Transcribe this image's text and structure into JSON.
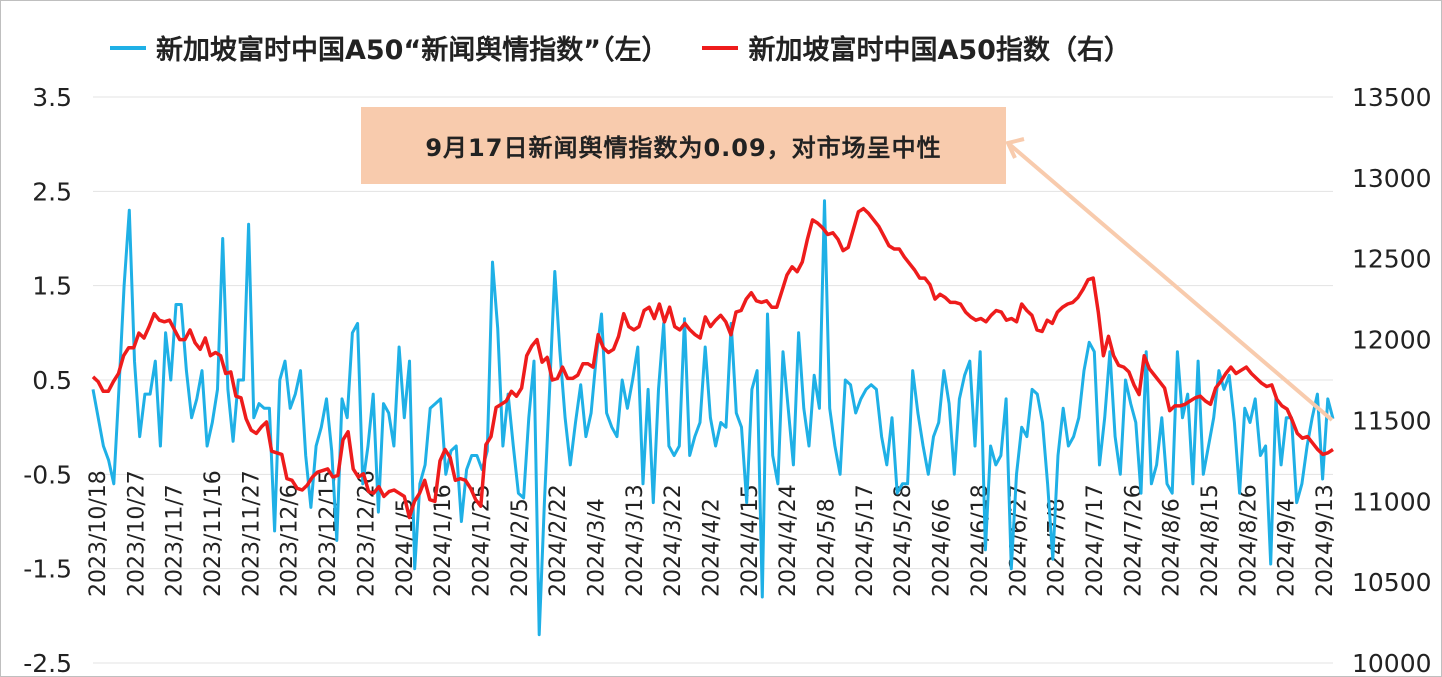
{
  "chart_data": {
    "type": "line",
    "title": "",
    "legend_position": "top",
    "grid": "horizontal",
    "y_left": {
      "ylim": [
        -2.5,
        3.5
      ],
      "ticks": [
        3.5,
        2.5,
        1.5,
        0.5,
        -0.5,
        -1.5,
        -2.5
      ],
      "tick_labels": [
        "3.5",
        "2.5",
        "1.5",
        "0.5",
        "-0.5",
        "-1.5",
        "-2.5"
      ]
    },
    "y_right": {
      "ylim": [
        10000,
        13500
      ],
      "ticks": [
        13500,
        13000,
        12500,
        12000,
        11500,
        11000,
        10500,
        10000
      ],
      "tick_labels": [
        "13500",
        "13000",
        "12500",
        "12000",
        "11500",
        "11000",
        "10500",
        "10000"
      ]
    },
    "x_tick_labels": [
      "2023/10/18",
      "2023/10/27",
      "2023/11/7",
      "2023/11/16",
      "2023/11/27",
      "2023/12/6",
      "2023/12/15",
      "2023/12/26",
      "2024/1/5",
      "2024/1/16",
      "2024/1/25",
      "2024/2/5",
      "2024/2/22",
      "2024/3/4",
      "2024/3/13",
      "2024/3/22",
      "2024/4/2",
      "2024/4/15",
      "2024/4/24",
      "2024/5/8",
      "2024/5/17",
      "2024/5/28",
      "2024/6/6",
      "2024/6/18",
      "2024/6/27",
      "2024/7/8",
      "2024/7/17",
      "2024/7/26",
      "2024/8/6",
      "2024/8/15",
      "2024/8/26",
      "2024/9/4",
      "2024/9/13"
    ],
    "series": [
      {
        "name": "新加坡富时中国A50“新闻舆情指数”（左）",
        "axis": "left",
        "color": "#1fb0e6",
        "values": [
          0.4,
          0.1,
          -0.2,
          -0.35,
          -0.6,
          0.4,
          1.5,
          2.3,
          0.7,
          -0.1,
          0.35,
          0.35,
          0.7,
          -0.2,
          1,
          0.5,
          1.3,
          1.3,
          0.6,
          0.1,
          0.3,
          0.6,
          -0.2,
          0.05,
          0.4,
          2,
          0.4,
          -0.15,
          0.5,
          0.5,
          2.15,
          0.1,
          0.25,
          0.2,
          0.2,
          -1.1,
          0.5,
          0.7,
          0.2,
          0.35,
          0.6,
          -0.3,
          -0.85,
          -0.2,
          0,
          0.3,
          -0.25,
          -1.2,
          0.3,
          0.1,
          1,
          1.1,
          -0.6,
          -0.2,
          0.35,
          -0.9,
          0.25,
          0.15,
          -0.2,
          0.85,
          0.1,
          0.7,
          -1.5,
          -0.6,
          -0.4,
          0.2,
          0.25,
          0.3,
          -0.5,
          -0.25,
          -0.2,
          -1.0,
          -0.45,
          -0.3,
          -0.3,
          -0.45,
          -0.25,
          1.75,
          1.05,
          -0.2,
          0.35,
          -0.2,
          -0.7,
          -0.75,
          0.1,
          0.7,
          -2.2,
          -0.8,
          0.4,
          1.65,
          0.8,
          0.1,
          -0.4,
          0.05,
          0.45,
          -0.1,
          0.15,
          0.75,
          1.2,
          0.15,
          0,
          -0.1,
          0.5,
          0.2,
          0.5,
          0.85,
          -0.6,
          0.4,
          -0.8,
          0.4,
          1.1,
          -0.2,
          -0.3,
          -0.2,
          1.15,
          -0.3,
          -0.1,
          0.05,
          0.85,
          0.1,
          -0.2,
          0.05,
          0,
          1.1,
          0.15,
          0,
          -0.8,
          0.4,
          0.6,
          -1.8,
          1.2,
          -0.3,
          -0.6,
          0.8,
          0.2,
          -0.4,
          1.0,
          0.2,
          -0.2,
          0.55,
          0.2,
          2.4,
          0.2,
          -0.2,
          -0.5,
          0.5,
          0.45,
          0.15,
          0.3,
          0.4,
          0.45,
          0.4,
          -0.1,
          -0.4,
          0.1,
          -0.7,
          -0.6,
          -0.6,
          0.6,
          0.15,
          -0.2,
          -0.5,
          -0.1,
          0.05,
          0.6,
          0.25,
          -0.5,
          0.3,
          0.55,
          0.7,
          -0.2,
          0.8,
          -1.3,
          -0.2,
          -0.4,
          -0.3,
          0.3,
          -1.5,
          -0.5,
          0,
          -0.1,
          0.4,
          0.35,
          0.05,
          -0.6,
          -1.4,
          -0.3,
          0.2,
          -0.2,
          -0.1,
          0.1,
          0.6,
          0.9,
          0.8,
          -0.4,
          0.1,
          0.8,
          -0.1,
          -0.5,
          0.5,
          0.25,
          0.05,
          -0.7,
          0.8,
          -0.6,
          -0.4,
          0.1,
          -0.6,
          -0.7,
          0.8,
          0.1,
          0.35,
          -0.6,
          0.7,
          -0.5,
          -0.2,
          0.1,
          0.6,
          0.4,
          0.55,
          0.05,
          -0.7,
          0.2,
          0.05,
          0.3,
          -0.3,
          -0.2,
          -1.45,
          0.3,
          -0.4,
          0.1,
          0.1,
          -0.8,
          -0.6,
          -0.2,
          0.1,
          0.35,
          -0.55,
          0.3,
          0.09
        ]
      },
      {
        "name": "新加坡富时中国A50指数（右）",
        "axis": "right",
        "color": "#ee1c1c",
        "values": [
          11770,
          11740,
          11680,
          11680,
          11740,
          11790,
          11900,
          11950,
          11950,
          12040,
          12010,
          12080,
          12160,
          12120,
          12110,
          12120,
          12060,
          12000,
          12000,
          12060,
          11980,
          11940,
          12010,
          11900,
          11920,
          11900,
          11790,
          11800,
          11650,
          11640,
          11510,
          11440,
          11420,
          11460,
          11490,
          11310,
          11300,
          11290,
          11140,
          11130,
          11080,
          11070,
          11100,
          11150,
          11180,
          11190,
          11200,
          11150,
          11160,
          11380,
          11430,
          11200,
          11150,
          11170,
          11060,
          11050,
          11090,
          11030,
          11060,
          11070,
          11050,
          11030,
          10900,
          11000,
          11050,
          11130,
          11010,
          11000,
          11250,
          11320,
          11270,
          11130,
          11140,
          11130,
          11080,
          11010,
          10970,
          11350,
          11400,
          11580,
          11600,
          11620,
          11680,
          11650,
          11700,
          11900,
          11960,
          12000,
          11860,
          11890,
          11750,
          11760,
          11830,
          11760,
          11760,
          11780,
          11850,
          11850,
          11830,
          12030,
          11950,
          11920,
          11940,
          12020,
          12160,
          12080,
          12060,
          12080,
          12180,
          12200,
          12130,
          12220,
          12110,
          12200,
          12080,
          12060,
          12100,
          12060,
          12030,
          12010,
          12140,
          12080,
          12120,
          12150,
          12110,
          12030,
          12170,
          12180,
          12250,
          12290,
          12240,
          12230,
          12240,
          12200,
          12200,
          12300,
          12400,
          12450,
          12420,
          12480,
          12620,
          12740,
          12720,
          12690,
          12650,
          12660,
          12620,
          12550,
          12570,
          12680,
          12790,
          12810,
          12780,
          12740,
          12700,
          12640,
          12580,
          12560,
          12560,
          12510,
          12470,
          12430,
          12380,
          12380,
          12340,
          12250,
          12280,
          12260,
          12230,
          12230,
          12220,
          12170,
          12140,
          12120,
          12130,
          12110,
          12150,
          12180,
          12170,
          12120,
          12130,
          12110,
          12220,
          12180,
          12150,
          12060,
          12050,
          12120,
          12100,
          12170,
          12200,
          12220,
          12230,
          12260,
          12310,
          12370,
          12380,
          12170,
          11900,
          12020,
          11900,
          11840,
          11830,
          11800,
          11720,
          11660,
          11900,
          11820,
          11780,
          11740,
          11700,
          11560,
          11590,
          11590,
          11600,
          11620,
          11640,
          11650,
          11620,
          11600,
          11700,
          11740,
          11790,
          11830,
          11790,
          11810,
          11830,
          11790,
          11760,
          11730,
          11710,
          11720,
          11630,
          11590,
          11570,
          11500,
          11420,
          11390,
          11400,
          11360,
          11320,
          11290,
          11300,
          11320
        ]
      }
    ],
    "annotations": [
      {
        "text": "9月17日新闻舆情指数为0.09，对市场呈中性"
      }
    ]
  }
}
